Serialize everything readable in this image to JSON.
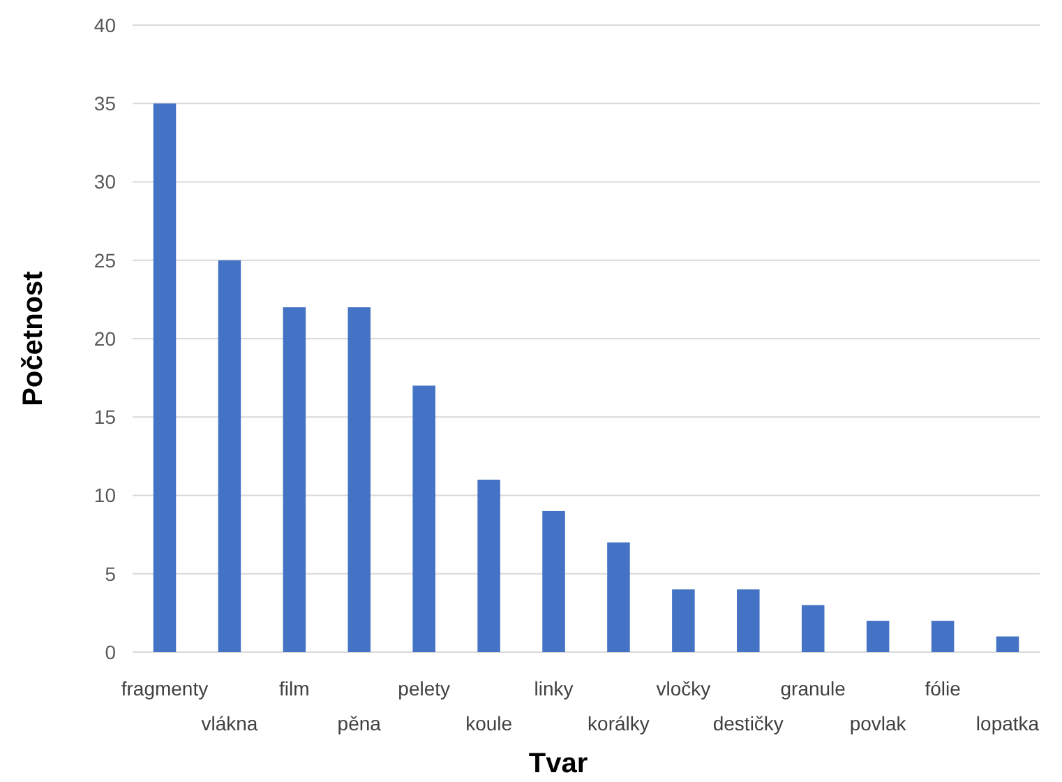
{
  "chart_data": {
    "type": "bar",
    "xlabel": "Tvar",
    "ylabel": "Početnost",
    "categories": [
      "fragmenty",
      "vlákna",
      "film",
      "pěna",
      "pelety",
      "koule",
      "linky",
      "korálky",
      "vločky",
      "destičky",
      "granule",
      "povlak",
      "fólie",
      "lopatka"
    ],
    "values": [
      35,
      25,
      22,
      22,
      17,
      11,
      9,
      7,
      4,
      4,
      3,
      2,
      2,
      1
    ],
    "color": "#4472c4",
    "ylim": [
      0,
      40
    ],
    "yticks": [
      0,
      5,
      10,
      15,
      20,
      25,
      30,
      35,
      40
    ],
    "grid": "y"
  }
}
